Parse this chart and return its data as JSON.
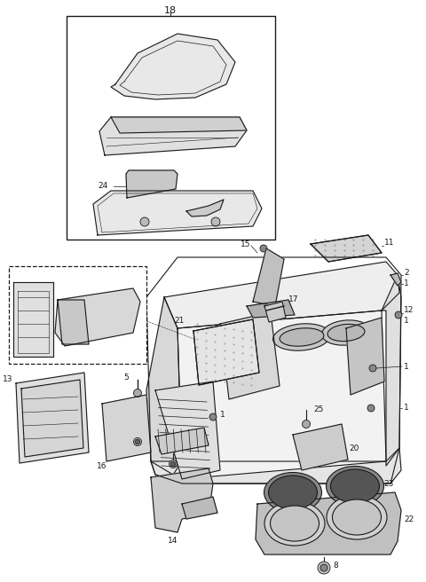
{
  "bg_color": "#ffffff",
  "line_color": "#1a1a1a",
  "fig_width": 4.8,
  "fig_height": 6.56,
  "dpi": 100,
  "label_fontsize": 7.0,
  "lw": 0.8
}
